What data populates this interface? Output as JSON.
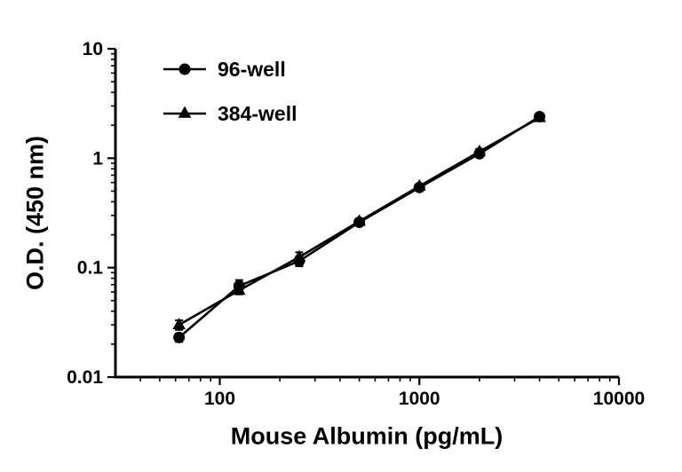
{
  "chart_data": {
    "type": "line",
    "title": "",
    "xlabel": "Mouse Albumin (pg/mL)",
    "ylabel": "O.D. (450 nm)",
    "xscale": "log",
    "yscale": "log",
    "xlim": [
      30,
      10000
    ],
    "ylim": [
      0.01,
      10
    ],
    "x_major_ticks": [
      100,
      1000,
      10000
    ],
    "y_major_ticks": [
      0.01,
      0.1,
      1,
      10
    ],
    "grid": false,
    "legend_position": "top-left",
    "x": [
      62.5,
      125,
      250,
      500,
      1000,
      2000,
      4000
    ],
    "series": [
      {
        "name": "96-well",
        "marker": "circle",
        "color": "#000000",
        "values": [
          0.023,
          0.068,
          0.115,
          0.26,
          0.54,
          1.1,
          2.4
        ],
        "errors": [
          0.002,
          0.009,
          0.012,
          0.01,
          0.025,
          0.06,
          0.09
        ]
      },
      {
        "name": "384-well",
        "marker": "triangle",
        "color": "#000000",
        "values": [
          0.03,
          0.062,
          0.125,
          0.265,
          0.555,
          1.15,
          2.35
        ],
        "errors": [
          0.003,
          0.005,
          0.013,
          0.01,
          0.025,
          0.07,
          0.09
        ]
      }
    ]
  }
}
